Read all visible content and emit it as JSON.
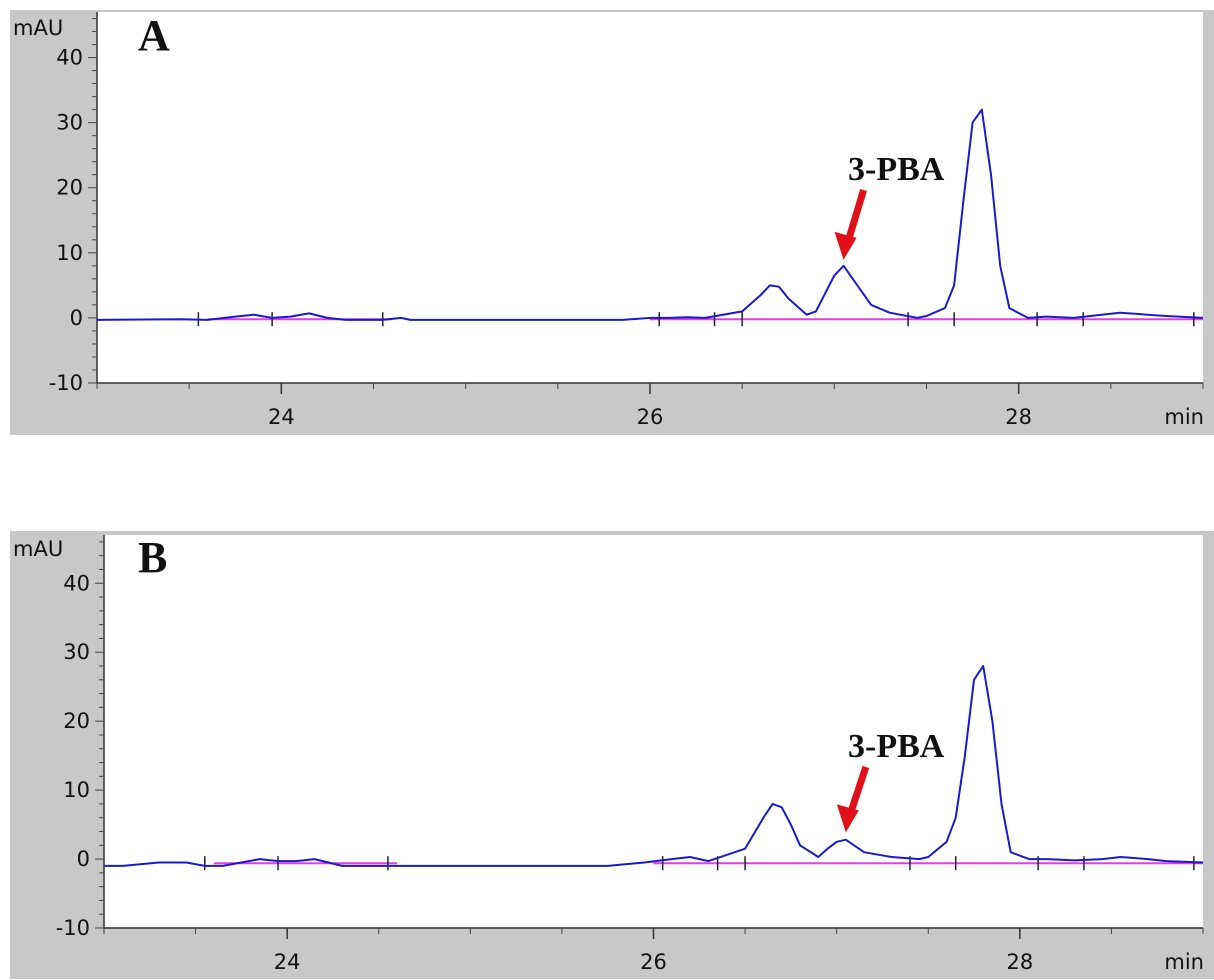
{
  "chart_data": [
    {
      "type": "line",
      "panel_label": "A",
      "ylabel": "mAU",
      "xlabel": "min",
      "xlim": [
        23.0,
        29.0
      ],
      "ylim": [
        -10,
        47
      ],
      "yticks": [
        -10,
        0,
        10,
        20,
        30,
        40
      ],
      "xticks": [
        24,
        26,
        28
      ],
      "grid": false,
      "colors": {
        "trace": "#1a1acc",
        "baseline": "#e040e0",
        "arrow": "#e0101a",
        "frame": "#c8c8c8"
      },
      "annotation": {
        "text": "3-PBA",
        "x": 27.05,
        "y": 8
      },
      "series": [
        {
          "x": [
            23.0,
            23.45,
            23.6,
            23.75,
            23.85,
            23.95,
            24.05,
            24.15,
            24.25,
            24.35,
            24.55,
            24.65,
            24.7,
            25.0,
            25.5,
            25.85,
            26.0,
            26.1,
            26.2,
            26.3,
            26.5,
            26.6,
            26.65,
            26.7,
            26.75,
            26.85,
            26.9,
            27.0,
            27.05,
            27.1,
            27.2,
            27.3,
            27.45,
            27.5,
            27.6,
            27.65,
            27.7,
            27.75,
            27.8,
            27.85,
            27.9,
            27.95,
            28.05,
            28.15,
            28.3,
            28.45,
            28.55,
            28.7,
            28.8,
            29.0
          ],
          "y": [
            -0.3,
            -0.2,
            -0.3,
            0.2,
            0.5,
            0.0,
            0.2,
            0.7,
            0.0,
            -0.3,
            -0.3,
            0.0,
            -0.3,
            -0.3,
            -0.3,
            -0.3,
            0.0,
            0.0,
            0.1,
            0.0,
            1.0,
            3.5,
            5.0,
            4.8,
            3.0,
            0.5,
            1.0,
            6.5,
            8.0,
            6.0,
            2.0,
            0.8,
            0.0,
            0.3,
            1.5,
            5.0,
            18.0,
            30.0,
            32.0,
            22.0,
            8.0,
            1.5,
            0.0,
            0.2,
            0.0,
            0.5,
            0.8,
            0.5,
            0.3,
            0.0
          ]
        }
      ]
    },
    {
      "type": "line",
      "panel_label": "B",
      "ylabel": "mAU",
      "xlabel": "min",
      "xlim": [
        23.0,
        29.0
      ],
      "ylim": [
        -10,
        47
      ],
      "yticks": [
        -10,
        0,
        10,
        20,
        30,
        40
      ],
      "xticks": [
        24,
        26,
        28
      ],
      "grid": false,
      "colors": {
        "trace": "#1a1acc",
        "baseline": "#e040e0",
        "arrow": "#e0101a",
        "frame": "#c8c8c8"
      },
      "annotation": {
        "text": "3-PBA",
        "x": 27.05,
        "y": 3
      },
      "series": [
        {
          "x": [
            23.0,
            23.1,
            23.3,
            23.45,
            23.55,
            23.65,
            23.75,
            23.85,
            23.95,
            24.05,
            24.15,
            24.3,
            24.6,
            25.0,
            25.45,
            25.75,
            25.95,
            26.1,
            26.2,
            26.3,
            26.5,
            26.6,
            26.65,
            26.7,
            26.75,
            26.8,
            26.9,
            26.95,
            27.0,
            27.05,
            27.15,
            27.3,
            27.45,
            27.5,
            27.6,
            27.65,
            27.7,
            27.75,
            27.8,
            27.85,
            27.9,
            27.95,
            28.05,
            28.15,
            28.3,
            28.45,
            28.55,
            28.7,
            28.8,
            29.0
          ],
          "y": [
            -1.0,
            -1.0,
            -0.5,
            -0.5,
            -1.0,
            -1.0,
            -0.5,
            0.0,
            -0.3,
            -0.3,
            0.0,
            -1.0,
            -1.0,
            -1.0,
            -1.0,
            -1.0,
            -0.5,
            0.0,
            0.3,
            -0.3,
            1.5,
            6.0,
            8.0,
            7.5,
            5.0,
            2.0,
            0.3,
            1.5,
            2.5,
            2.8,
            1.0,
            0.3,
            0.0,
            0.3,
            2.5,
            6.0,
            15.0,
            26.0,
            28.0,
            20.0,
            8.0,
            1.0,
            0.0,
            0.0,
            -0.2,
            0.0,
            0.3,
            0.0,
            -0.3,
            -0.5
          ]
        }
      ]
    }
  ]
}
